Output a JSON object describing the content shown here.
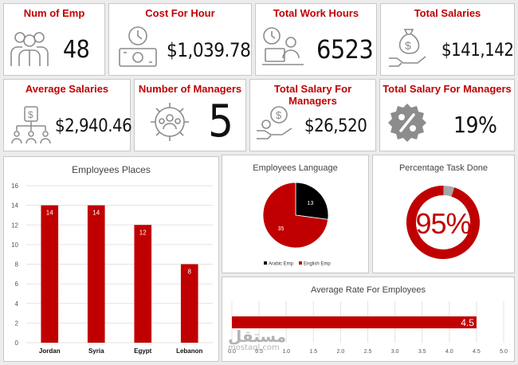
{
  "kpis": {
    "num_emp": {
      "title": "Num of Emp",
      "value": "48"
    },
    "cost_hour": {
      "title": "Cost For Hour",
      "value": "$1,039.78"
    },
    "work_hours": {
      "title": "Total Work Hours",
      "value": "6523"
    },
    "total_salaries": {
      "title": "Total Salaries",
      "value": "$141,142"
    },
    "avg_salaries": {
      "title": "Average Salaries",
      "value": "$2,940.46"
    },
    "num_managers": {
      "title": "Number of Managers",
      "value": "5"
    },
    "salary_managers": {
      "title": "Total Salary For Managers",
      "value": "$26,520"
    },
    "salary_managers_pct": {
      "title": "Total Salary For Managers",
      "value": "19%"
    }
  },
  "colors": {
    "accent": "#c00000",
    "dark": "#111111",
    "grey": "#a6a6a6",
    "icon": "#8c8c8c"
  },
  "icons": [
    "employees-icon",
    "clock-money-icon",
    "laptop-worker-icon",
    "money-bag-hand-icon",
    "org-chart-money-icon",
    "gear-team-icon",
    "coin-hand-icon",
    "percent-badge-icon"
  ],
  "chart_data": [
    {
      "type": "bar",
      "title": "Employees Places",
      "categories": [
        "Jordan",
        "Syria",
        "Egypt",
        "Lebanon"
      ],
      "values": [
        14,
        14,
        12,
        8
      ],
      "data_labels": [
        "14",
        "14",
        "12",
        "8"
      ],
      "ylim": [
        0,
        16
      ],
      "yticks": [
        "0",
        "2",
        "4",
        "6",
        "8",
        "10",
        "12",
        "14",
        "16"
      ],
      "ytick_values": [
        0,
        2,
        4,
        6,
        8,
        10,
        12,
        14,
        16
      ],
      "grid": true,
      "color": "#c00000"
    },
    {
      "type": "pie",
      "title": "Employees Language",
      "series": [
        {
          "name": "Arabic Emp",
          "value": 13,
          "label": "13",
          "color": "#000000"
        },
        {
          "name": "English Emp",
          "value": 35,
          "label": "35",
          "color": "#c00000"
        }
      ],
      "legend": "bottom"
    },
    {
      "type": "pie",
      "title": "Percentage Task Done",
      "value": 95,
      "center_label": "95%",
      "colors": {
        "done": "#c00000",
        "remaining": "#a6a6a6"
      }
    },
    {
      "type": "bar",
      "orientation": "horizontal",
      "title": "Average Rate For Employees",
      "value": 4.5,
      "data_label": "4.5",
      "xlim": [
        0,
        5
      ],
      "xticks": [
        "0.0",
        "0.5",
        "1.0",
        "1.5",
        "2.0",
        "2.5",
        "3.0",
        "3.5",
        "4.0",
        "4.5",
        "5.0"
      ],
      "xtick_values": [
        0,
        0.5,
        1,
        1.5,
        2,
        2.5,
        3,
        3.5,
        4,
        4.5,
        5
      ],
      "grid": true,
      "color": "#c00000"
    }
  ],
  "watermark": {
    "arabic": "مستقل",
    "latin": "mostaql.com"
  }
}
